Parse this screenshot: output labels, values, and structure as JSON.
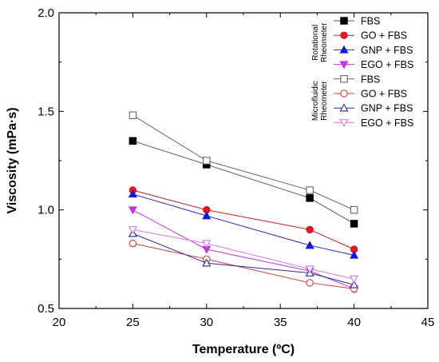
{
  "chart_data": {
    "type": "line",
    "xlabel": "Temperature (ºC)",
    "ylabel": "Viscosity (mPa·s)",
    "xlim": [
      20,
      45
    ],
    "ylim": [
      0.5,
      2.0
    ],
    "xticks": [
      "20",
      "25",
      "30",
      "35",
      "40",
      "45"
    ],
    "yticks": [
      "0.5",
      "1.0",
      "1.5",
      "2.0"
    ],
    "grid": false,
    "legend_position": "top-right",
    "legend_groups": [
      {
        "label_lines": [
          "Rotational",
          "Rheometer"
        ],
        "series_indices": [
          0,
          1,
          2,
          3
        ]
      },
      {
        "label_lines": [
          "Microfluidic",
          "Rheometer"
        ],
        "series_indices": [
          4,
          5,
          6,
          7
        ]
      }
    ],
    "series": [
      {
        "name": "FBS",
        "group": "Rotational Rheometer",
        "marker": "square",
        "filled": true,
        "color": "#000000",
        "line_color": "#555555",
        "x": [
          25,
          30,
          37,
          40
        ],
        "y": [
          1.35,
          1.23,
          1.06,
          0.93
        ]
      },
      {
        "name": "GO + FBS",
        "group": "Rotational Rheometer",
        "marker": "circle",
        "filled": true,
        "color": "#e8141e",
        "line_color": "#c81e1e",
        "x": [
          25,
          30,
          37,
          40
        ],
        "y": [
          1.1,
          1.0,
          0.9,
          0.8
        ]
      },
      {
        "name": "GNP + FBS",
        "group": "Rotational Rheometer",
        "marker": "triangle-up",
        "filled": true,
        "color": "#1414e6",
        "line_color": "#2828c8",
        "x": [
          25,
          30,
          37,
          40
        ],
        "y": [
          1.08,
          0.97,
          0.82,
          0.77
        ]
      },
      {
        "name": "EGO + FBS",
        "group": "Rotational Rheometer",
        "marker": "triangle-down",
        "filled": true,
        "color": "#c832e6",
        "line_color": "#c832e6",
        "x": [
          25,
          30,
          37,
          40
        ],
        "y": [
          1.0,
          0.8,
          0.69,
          0.6
        ]
      },
      {
        "name": "FBS",
        "group": "Microfluidic Rheometer",
        "marker": "square",
        "filled": false,
        "color": "#666666",
        "line_color": "#666666",
        "x": [
          25,
          30,
          37,
          40
        ],
        "y": [
          1.48,
          1.25,
          1.1,
          1.0
        ]
      },
      {
        "name": "GO + FBS",
        "group": "Microfluidic Rheometer",
        "marker": "circle",
        "filled": false,
        "color": "#d23c3c",
        "line_color": "#d23c3c",
        "x": [
          25,
          30,
          37,
          40
        ],
        "y": [
          0.83,
          0.75,
          0.63,
          0.6
        ]
      },
      {
        "name": "GNP + FBS",
        "group": "Microfluidic Rheometer",
        "marker": "triangle-up",
        "filled": false,
        "color": "#2a2a9a",
        "line_color": "#2a2a9a",
        "x": [
          25,
          30,
          37,
          40
        ],
        "y": [
          0.88,
          0.73,
          0.68,
          0.62
        ]
      },
      {
        "name": "EGO + FBS",
        "group": "Microfluidic Rheometer",
        "marker": "triangle-down",
        "filled": false,
        "color": "#d278e6",
        "line_color": "#d278e6",
        "x": [
          25,
          30,
          37,
          40
        ],
        "y": [
          0.9,
          0.83,
          0.7,
          0.65
        ]
      }
    ]
  }
}
